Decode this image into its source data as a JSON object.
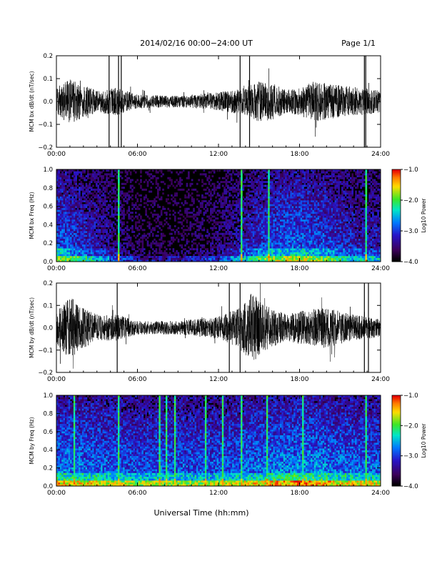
{
  "header": {
    "title": "2014/02/16  00:00−24:00 UT",
    "page_label": "Page 1/1"
  },
  "footer": {
    "xlabel": "Universal Time (hh:mm)"
  },
  "time_ticks": [
    "00:00",
    "06:00",
    "12:00",
    "18:00",
    "24:00"
  ],
  "colorbar_ticks": [
    "−1.0",
    "−2.0",
    "−3.0",
    "−4.0"
  ],
  "chart_data": [
    {
      "type": "line",
      "panel": "bx-dbdt",
      "ylabel": "MCM bx dB/dt (nT/sec)",
      "xlim_hours": [
        0,
        24
      ],
      "ylim": [
        -0.2,
        0.2
      ],
      "yticks": [
        "0.2",
        "0.1",
        "0.0",
        "−0.1",
        "−0.2"
      ],
      "amplitude_envelope": [
        {
          "t": 0.0,
          "a": 0.06
        },
        {
          "t": 1.0,
          "a": 0.1
        },
        {
          "t": 2.0,
          "a": 0.07
        },
        {
          "t": 3.0,
          "a": 0.05
        },
        {
          "t": 4.5,
          "a": 0.06
        },
        {
          "t": 6.0,
          "a": 0.03
        },
        {
          "t": 9.0,
          "a": 0.025
        },
        {
          "t": 12.0,
          "a": 0.04
        },
        {
          "t": 14.0,
          "a": 0.06
        },
        {
          "t": 15.0,
          "a": 0.09
        },
        {
          "t": 16.0,
          "a": 0.08
        },
        {
          "t": 17.0,
          "a": 0.05
        },
        {
          "t": 18.0,
          "a": 0.06
        },
        {
          "t": 19.0,
          "a": 0.09
        },
        {
          "t": 21.0,
          "a": 0.07
        },
        {
          "t": 22.5,
          "a": 0.06
        },
        {
          "t": 24.0,
          "a": 0.05
        }
      ],
      "full_range_spikes_hours": [
        3.9,
        4.6,
        4.8,
        13.6,
        14.3,
        22.8,
        22.9
      ]
    },
    {
      "type": "heatmap",
      "panel": "bx-spectrogram",
      "ylabel": "MCM bx Freq (Hz)",
      "xlim_hours": [
        0,
        24
      ],
      "ylim": [
        0.0,
        1.0
      ],
      "yticks": [
        "1.0",
        "0.8",
        "0.6",
        "0.4",
        "0.2",
        "0.0"
      ],
      "colorbar_label": "Log10 Power",
      "colorbar_range": [
        -4.0,
        -1.0
      ],
      "vertical_streaks_hours": [
        4.5,
        13.6,
        15.6,
        22.8
      ],
      "activity_envelope": [
        {
          "t": 0.0,
          "a": 0.75
        },
        {
          "t": 2.0,
          "a": 0.55
        },
        {
          "t": 4.0,
          "a": 0.35
        },
        {
          "t": 6.0,
          "a": 0.15
        },
        {
          "t": 9.0,
          "a": 0.12
        },
        {
          "t": 12.0,
          "a": 0.25
        },
        {
          "t": 14.5,
          "a": 0.55
        },
        {
          "t": 16.0,
          "a": 0.7
        },
        {
          "t": 18.0,
          "a": 0.75
        },
        {
          "t": 20.0,
          "a": 0.65
        },
        {
          "t": 22.0,
          "a": 0.5
        },
        {
          "t": 24.0,
          "a": 0.45
        }
      ]
    },
    {
      "type": "line",
      "panel": "by-dbdt",
      "ylabel": "MCM by dB/dt (nT/sec)",
      "xlim_hours": [
        0,
        24
      ],
      "ylim": [
        -0.2,
        0.2
      ],
      "yticks": [
        "0.2",
        "0.1",
        "0.0",
        "−0.1",
        "−0.2"
      ],
      "amplitude_envelope": [
        {
          "t": 0.0,
          "a": 0.07
        },
        {
          "t": 1.0,
          "a": 0.14
        },
        {
          "t": 2.0,
          "a": 0.09
        },
        {
          "t": 3.0,
          "a": 0.06
        },
        {
          "t": 4.5,
          "a": 0.06
        },
        {
          "t": 6.0,
          "a": 0.03
        },
        {
          "t": 9.0,
          "a": 0.03
        },
        {
          "t": 12.0,
          "a": 0.05
        },
        {
          "t": 13.5,
          "a": 0.09
        },
        {
          "t": 14.5,
          "a": 0.16
        },
        {
          "t": 15.5,
          "a": 0.1
        },
        {
          "t": 17.0,
          "a": 0.06
        },
        {
          "t": 18.5,
          "a": 0.08
        },
        {
          "t": 20.0,
          "a": 0.09
        },
        {
          "t": 22.0,
          "a": 0.06
        },
        {
          "t": 24.0,
          "a": 0.04
        }
      ],
      "full_range_spikes_hours": [
        4.5,
        12.8,
        13.6,
        22.8,
        23.1
      ]
    },
    {
      "type": "heatmap",
      "panel": "by-spectrogram",
      "ylabel": "MCM by Freq (Hz)",
      "xlim_hours": [
        0,
        24
      ],
      "ylim": [
        0.0,
        1.0
      ],
      "yticks": [
        "1.0",
        "0.8",
        "0.6",
        "0.4",
        "0.2",
        "0.0"
      ],
      "colorbar_label": "Log10 Power",
      "colorbar_range": [
        -4.0,
        -1.0
      ],
      "vertical_streaks_hours": [
        1.2,
        4.5,
        7.6,
        8.1,
        8.7,
        11.0,
        12.3,
        13.6,
        15.5,
        18.2,
        22.8
      ],
      "activity_envelope": [
        {
          "t": 0.0,
          "a": 0.85
        },
        {
          "t": 3.0,
          "a": 0.78
        },
        {
          "t": 6.0,
          "a": 0.7
        },
        {
          "t": 12.0,
          "a": 0.72
        },
        {
          "t": 16.0,
          "a": 0.82
        },
        {
          "t": 18.5,
          "a": 0.9
        },
        {
          "t": 21.0,
          "a": 0.8
        },
        {
          "t": 24.0,
          "a": 0.75
        }
      ]
    }
  ]
}
